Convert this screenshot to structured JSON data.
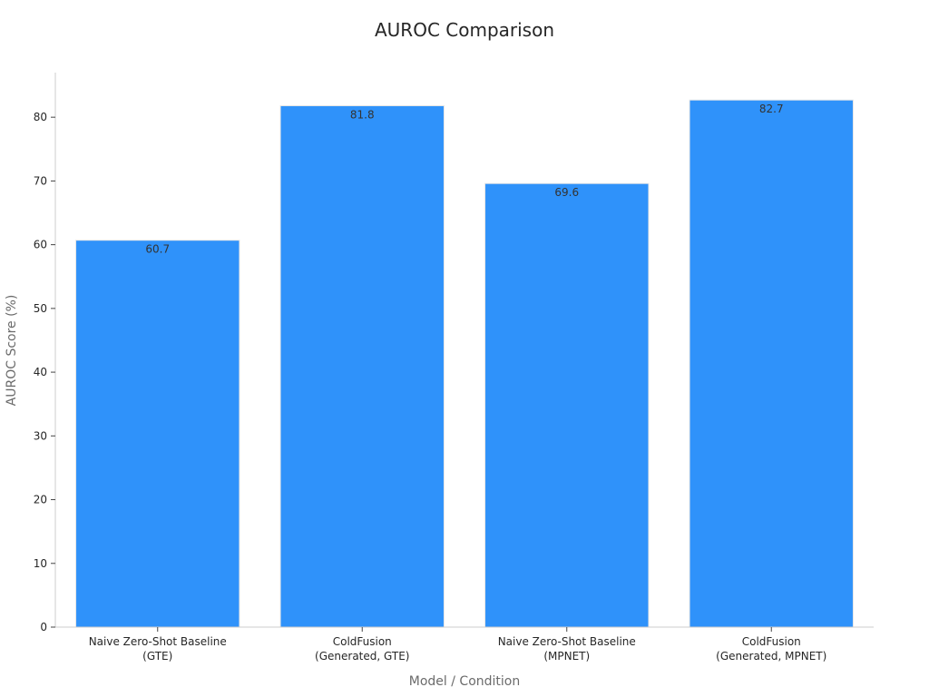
{
  "chart_data": {
    "type": "bar",
    "title": "AUROC Comparison",
    "xlabel": "Model / Condition",
    "ylabel": "AUROC Score (%)",
    "categories": [
      [
        "Naive Zero-Shot Baseline",
        "(GTE)"
      ],
      [
        "ColdFusion",
        "(Generated, GTE)"
      ],
      [
        "Naive Zero-Shot Baseline",
        "(MPNET)"
      ],
      [
        "ColdFusion",
        "(Generated, MPNET)"
      ]
    ],
    "values": [
      60.7,
      81.8,
      69.6,
      82.7
    ],
    "value_labels": [
      "60.7",
      "81.8",
      "69.6",
      "82.7"
    ],
    "ylim": [
      0,
      87
    ],
    "yticks": [
      0,
      10,
      20,
      30,
      40,
      50,
      60,
      70,
      80
    ],
    "grid": false,
    "bar_color": "#2f92fa"
  }
}
